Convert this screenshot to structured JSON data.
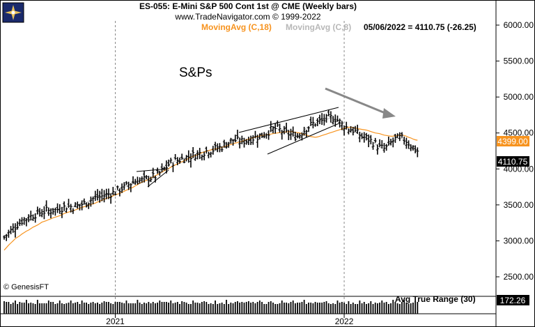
{
  "header": {
    "title": "ES-055:  E-Mini S&P 500 Cont 1st @ CME  (Weekly bars)",
    "site": "www.TradeNavigator.com © 1999-2022",
    "ma18_label": "MovingAvg (C,18)",
    "ma8_label": "MovingAvg (C,8)",
    "quote": "05/06/2022 = 4110.75 (-26.25)",
    "logo_icon": "compass-rose-icon"
  },
  "annotation": {
    "text": "S&Ps"
  },
  "copyright": "© GenesisFT",
  "price_badges": {
    "ma18": "4399.00",
    "last": "4110.75"
  },
  "atr": {
    "label": "Avg True Range (30)",
    "value": "172.26"
  },
  "colors": {
    "ma18": "#f7931e",
    "ma8": "#b8b8b8",
    "bars": "#000000",
    "arrow": "#888888",
    "badge_ma": "#f7931e",
    "badge_last": "#000000"
  },
  "chart_data": {
    "type": "line",
    "title": "ES-055:  E-Mini S&P 500 Cont 1st @ CME  (Weekly bars)",
    "y_ticks": [
      "6000.00",
      "5500.00",
      "5000.00",
      "4500.00",
      "4000.00",
      "3500.00",
      "3000.00",
      "2500.00"
    ],
    "y_tick_values": [
      6000,
      5500,
      5000,
      4500,
      4000,
      3500,
      3000,
      2500
    ],
    "ylim": [
      2290,
      6080
    ],
    "x_ticks": [
      "2021",
      "2022"
    ],
    "x_tick_index": [
      50,
      153
    ],
    "grid": "vertical dashed at year boundaries",
    "series": [
      {
        "name": "MovingAvg (C,18)",
        "values": [
          2870,
          2905,
          2940,
          2970,
          3000,
          3030,
          3050,
          3070,
          3095,
          3115,
          3135,
          3150,
          3170,
          3190,
          3205,
          3220,
          3240,
          3260,
          3270,
          3280,
          3295,
          3305,
          3320,
          3330,
          3340,
          3350,
          3365,
          3380,
          3390,
          3400,
          3410,
          3420,
          3430,
          3440,
          3455,
          3465,
          3475,
          3485,
          3495,
          3505,
          3515,
          3525,
          3540,
          3550,
          3565,
          3575,
          3590,
          3600,
          3615,
          3625,
          3640,
          3650,
          3660,
          3675,
          3690,
          3705,
          3715,
          3730,
          3745,
          3765,
          3780,
          3800,
          3815,
          3830,
          3840,
          3855,
          3870,
          3890,
          3905,
          3920,
          3940,
          3955,
          3975,
          3990,
          4005,
          4025,
          4040,
          4055,
          4070,
          4085,
          4100,
          4115,
          4130,
          4145,
          4160,
          4175,
          4185,
          4195,
          4210,
          4225,
          4235,
          4245,
          4255,
          4265,
          4270,
          4280,
          4285,
          4290,
          4300,
          4310,
          4320,
          4330,
          4340,
          4350,
          4360,
          4365,
          4375,
          4385,
          4395,
          4405,
          4415,
          4425,
          4435,
          4445,
          4450,
          4460,
          4465,
          4470,
          4475,
          4480,
          4485,
          4490,
          4495,
          4500,
          4505,
          4510,
          4512,
          4515,
          4518,
          4520,
          4515,
          4510,
          4505,
          4500,
          4490,
          4480,
          4470,
          4460,
          4450,
          4445,
          4440,
          4445,
          4455,
          4465,
          4475,
          4485,
          4495,
          4505,
          4515,
          4525,
          4535,
          4545,
          4555,
          4565,
          4575,
          4580,
          4580,
          4575,
          4570,
          4560,
          4555,
          4550,
          4545,
          4540,
          4530,
          4520,
          4510,
          4500,
          4495,
          4490,
          4480,
          4470,
          4465,
          4460,
          4455,
          4455,
          4460,
          4465,
          4470,
          4470,
          4465,
          4455,
          4440,
          4430,
          4415,
          4405,
          4399
        ]
      },
      {
        "name": "MovingAvg (C,8)",
        "values": [
          3050,
          3080,
          3110,
          3140,
          3170,
          3200,
          3230,
          3250,
          3280,
          3300,
          3310,
          3320,
          3340,
          3360,
          3370,
          3380,
          3390,
          3400,
          3410,
          3420,
          3420,
          3420,
          3430,
          3430,
          3440,
          3450,
          3460,
          3470,
          3480,
          3480,
          3480,
          3470,
          3480,
          3490,
          3500,
          3510,
          3520,
          3530,
          3550,
          3570,
          3590,
          3600,
          3610,
          3610,
          3620,
          3630,
          3640,
          3650,
          3660,
          3670,
          3680,
          3700,
          3720,
          3730,
          3740,
          3760,
          3780,
          3800,
          3820,
          3830,
          3840,
          3840,
          3840,
          3850,
          3860,
          3870,
          3880,
          3890,
          3900,
          3920,
          3940,
          3970,
          4000,
          4030,
          4060,
          4080,
          4100,
          4110,
          4120,
          4130,
          4140,
          4150,
          4160,
          4170,
          4180,
          4190,
          4200,
          4210,
          4220,
          4230,
          4240,
          4250,
          4260,
          4260,
          4270,
          4280,
          4290,
          4300,
          4310,
          4330,
          4350,
          4370,
          4390,
          4400,
          4400,
          4390,
          4380,
          4380,
          4390,
          4400,
          4410,
          4420,
          4430,
          4440,
          4450,
          4460,
          4470,
          4480,
          4500,
          4520,
          4540,
          4550,
          4560,
          4560,
          4540,
          4520,
          4510,
          4500,
          4490,
          4480,
          4470,
          4460,
          4460,
          4480,
          4510,
          4540,
          4570,
          4590,
          4610,
          4630,
          4640,
          4650,
          4660,
          4670,
          4680,
          4690,
          4700,
          4710,
          4710,
          4700,
          4680,
          4650,
          4620,
          4600,
          4580,
          4560,
          4550,
          4540,
          4520,
          4490,
          4470,
          4450,
          4440,
          4430,
          4410,
          4390,
          4370,
          4350,
          4320,
          4300,
          4290,
          4280,
          4300,
          4330,
          4360,
          4390,
          4410,
          4420,
          4430,
          4420,
          4410,
          4390,
          4360,
          4330,
          4300,
          4270,
          4250
        ]
      }
    ],
    "annotations": [
      "S&Ps"
    ],
    "ohlc_note": "Weekly OHLC bars from about 3100 rising to a high near 4800 at the start of 2022, then falling to 4110.75"
  }
}
